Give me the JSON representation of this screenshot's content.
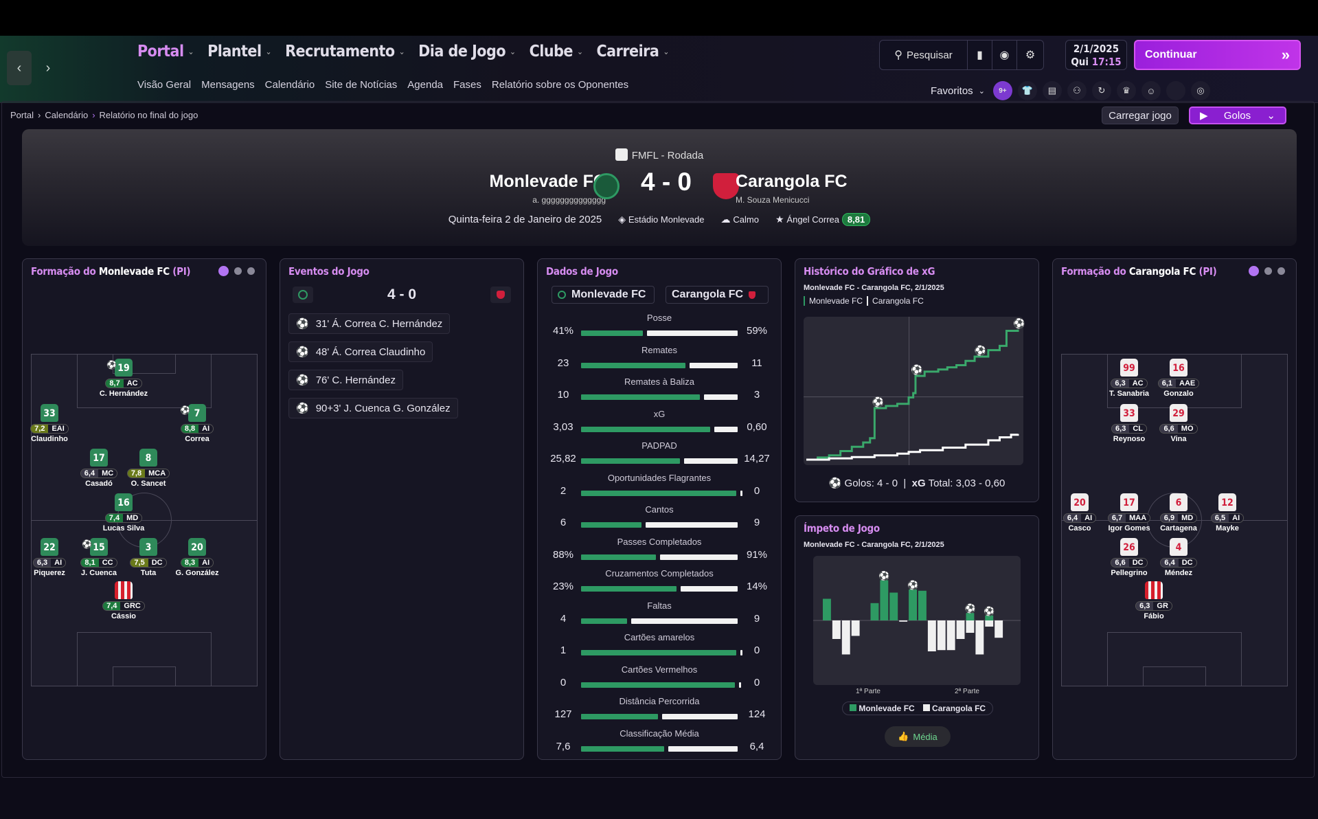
{
  "nav": {
    "main": [
      {
        "label": "Portal",
        "active": true
      },
      {
        "label": "Plantel"
      },
      {
        "label": "Recrutamento"
      },
      {
        "label": "Dia de Jogo"
      },
      {
        "label": "Clube"
      },
      {
        "label": "Carreira"
      }
    ],
    "sub": [
      "Visão Geral",
      "Mensagens",
      "Calendário",
      "Site de Notícias",
      "Agenda",
      "Fases",
      "Relatório sobre os Oponentes"
    ],
    "search": "Pesquisar",
    "date": "2/1/2025",
    "day": "Qui",
    "time": "17:15",
    "continue": "Continuar",
    "favorites": "Favoritos",
    "badge": "9+"
  },
  "breadcrumb": [
    "Portal",
    "Calendário",
    "Relatório no final do jogo"
  ],
  "actions": {
    "load": "Carregar jogo",
    "goals": "Golos"
  },
  "match": {
    "competition": "FMFL - Rodada",
    "home": "Monlevade FC",
    "away": "Carangola FC",
    "score": "4 - 0",
    "home_manager": "a. gggggggggggggg",
    "away_manager": "M. Souza Menicucci",
    "date": "Quinta-feira 2 de Janeiro de 2025",
    "stadium": "Estádio Monlevade",
    "weather": "Calmo",
    "motm": "Ángel Correa",
    "motm_rating": "8,81",
    "colors": {
      "home": "#2e9a63",
      "away": "#d11f3c",
      "accent": "#d68cf0"
    }
  },
  "home_form": {
    "title_pre": "Formação do ",
    "team": "Monlevade FC",
    "title_post": " (PI)",
    "players": [
      {
        "n": "19",
        "r": "8,7",
        "pos": "AC",
        "name": "C. Hernández",
        "t": "g",
        "c": "gg",
        "ball": true
      },
      {
        "n": "33",
        "r": "7,2",
        "pos": "EAI",
        "name": "Claudinho",
        "t": "g",
        "c": "yy"
      },
      {
        "n": "7",
        "r": "8,8",
        "pos": "AI",
        "name": "Correa",
        "t": "g",
        "c": "gg",
        "ball": true
      },
      {
        "n": "17",
        "r": "6,4",
        "pos": "MC",
        "name": "Casadó",
        "t": "g",
        "c": ""
      },
      {
        "n": "8",
        "r": "7,8",
        "pos": "MCA",
        "name": "O. Sancet",
        "t": "g",
        "c": "yy"
      },
      {
        "n": "16",
        "r": "7,4",
        "pos": "MD",
        "name": "Lucas Silva",
        "t": "g",
        "c": "gg"
      },
      {
        "n": "22",
        "r": "6,3",
        "pos": "AI",
        "name": "Piquerez",
        "t": "g",
        "c": ""
      },
      {
        "n": "15",
        "r": "8,1",
        "pos": "CC",
        "name": "J. Cuenca",
        "t": "g",
        "c": "gg",
        "ball": true
      },
      {
        "n": "3",
        "r": "7,5",
        "pos": "DC",
        "name": "Tuta",
        "t": "g",
        "c": "yy"
      },
      {
        "n": "20",
        "r": "8,3",
        "pos": "AI",
        "name": "G. González",
        "t": "g",
        "c": "gg"
      },
      {
        "n": "",
        "r": "7,4",
        "pos": "GRC",
        "name": "Cássio",
        "t": "gk",
        "c": "gg"
      }
    ]
  },
  "away_form": {
    "title_pre": "Formação do ",
    "team": "Carangola FC",
    "title_post": " (PI)",
    "players": [
      {
        "n": "99",
        "r": "6,3",
        "pos": "AC",
        "name": "T. Sanabria",
        "t": "r",
        "c": ""
      },
      {
        "n": "16",
        "r": "6,1",
        "pos": "AAE",
        "name": "Gonzalo",
        "t": "r",
        "c": ""
      },
      {
        "n": "33",
        "r": "6,3",
        "pos": "CL",
        "name": "Reynoso",
        "t": "r",
        "c": ""
      },
      {
        "n": "29",
        "r": "6,6",
        "pos": "MO",
        "name": "Vina",
        "t": "r",
        "c": ""
      },
      {
        "n": "20",
        "r": "6,4",
        "pos": "AI",
        "name": "Casco",
        "t": "r",
        "c": ""
      },
      {
        "n": "17",
        "r": "6,7",
        "pos": "MAA",
        "name": "Igor Gomes",
        "t": "r",
        "c": ""
      },
      {
        "n": "6",
        "r": "6,9",
        "pos": "MD",
        "name": "Cartagena",
        "t": "r",
        "c": ""
      },
      {
        "n": "12",
        "r": "6,5",
        "pos": "AI",
        "name": "Mayke",
        "t": "r",
        "c": ""
      },
      {
        "n": "26",
        "r": "6,6",
        "pos": "DC",
        "name": "Pellegrino",
        "t": "r",
        "c": ""
      },
      {
        "n": "4",
        "r": "6,4",
        "pos": "DC",
        "name": "Méndez",
        "t": "r",
        "c": ""
      },
      {
        "n": "",
        "r": "6,3",
        "pos": "GR",
        "name": "Fábio",
        "t": "gk",
        "c": ""
      }
    ]
  },
  "events": {
    "title": "Eventos do Jogo",
    "score": "4 - 0",
    "list": [
      "31' Á. Correa C. Hernández",
      "48' Á. Correa Claudinho",
      "76' C. Hernández",
      "90+3' J. Cuenca G. González"
    ]
  },
  "stats": {
    "title": "Dados de Jogo",
    "home": "Monlevade FC",
    "away": "Carangola FC",
    "rows": [
      {
        "l": "Posse",
        "h": "41%",
        "a": "59%",
        "hv": 41,
        "av": 59
      },
      {
        "l": "Remates",
        "h": "23",
        "a": "11",
        "hv": 23,
        "av": 11
      },
      {
        "l": "Remates à Baliza",
        "h": "10",
        "a": "3",
        "hv": 10,
        "av": 3
      },
      {
        "l": "xG",
        "h": "3,03",
        "a": "0,60",
        "hv": 3.03,
        "av": 0.6
      },
      {
        "l": "PADPAD",
        "h": "25,82",
        "a": "14,27",
        "hv": 25.82,
        "av": 14.27
      },
      {
        "l": "Oportunidades Flagrantes",
        "h": "2",
        "a": "0",
        "hv": 2,
        "av": 0
      },
      {
        "l": "Cantos",
        "h": "6",
        "a": "9",
        "hv": 6,
        "av": 9
      },
      {
        "l": "Passes Completados",
        "h": "88%",
        "a": "91%",
        "hv": 88,
        "av": 91
      },
      {
        "l": "Cruzamentos Completados",
        "h": "23%",
        "a": "14%",
        "hv": 23,
        "av": 14
      },
      {
        "l": "Faltas",
        "h": "4",
        "a": "9",
        "hv": 4,
        "av": 9
      },
      {
        "l": "Cartões amarelos",
        "h": "1",
        "a": "0",
        "hv": 1,
        "av": 0
      },
      {
        "l": "Cartões Vermelhos",
        "h": "0",
        "a": "0",
        "hv": 0,
        "av": 0
      },
      {
        "l": "Distância Percorrida",
        "h": "127",
        "a": "124",
        "hv": 127,
        "av": 124
      },
      {
        "l": "Classificação Média",
        "h": "7,6",
        "a": "6,4",
        "hv": 7.6,
        "av": 6.4
      }
    ]
  },
  "xg": {
    "title": "Histórico do Gráfico de xG",
    "subtitle": "Monlevade FC - Carangola FC, 2/1/2025",
    "legend_home": "Monlevade FC",
    "legend_away": "Carangola FC",
    "goals_label": "Golos: 4 - 0",
    "xg_label": "xG",
    "total_label": "Total: 3,03 - 0,60"
  },
  "momentum": {
    "title": "Ímpeto de Jogo",
    "subtitle": "Monlevade FC - Carangola FC, 2/1/2025",
    "first_half": "1ª Parte",
    "second_half": "2ª Parte",
    "legend_home": "Monlevade FC",
    "legend_away": "Carangola FC",
    "button": "Média"
  },
  "chart_data": [
    {
      "type": "line",
      "title": "Histórico do Gráfico de xG",
      "series": [
        {
          "name": "Monlevade FC",
          "x": [
            0,
            5,
            10,
            15,
            20,
            25,
            28,
            30,
            31,
            35,
            40,
            45,
            47,
            48,
            52,
            58,
            62,
            66,
            70,
            74,
            76,
            80,
            85,
            88,
            90,
            93
          ],
          "y": [
            0,
            0.05,
            0.1,
            0.2,
            0.3,
            0.4,
            0.5,
            1.2,
            1.2,
            1.25,
            1.3,
            1.45,
            1.55,
            1.95,
            2.05,
            2.1,
            2.15,
            2.2,
            2.3,
            2.4,
            2.4,
            2.55,
            2.65,
            3.0,
            3.0,
            3.03
          ]
        },
        {
          "name": "Carangola FC",
          "x": [
            0,
            10,
            20,
            30,
            40,
            45,
            50,
            60,
            70,
            80,
            85,
            90,
            93
          ],
          "y": [
            0,
            0.03,
            0.06,
            0.1,
            0.14,
            0.18,
            0.22,
            0.28,
            0.35,
            0.45,
            0.52,
            0.58,
            0.6
          ]
        }
      ]
    },
    {
      "type": "bar",
      "title": "Ímpeto de Jogo",
      "series": [
        {
          "name": "Monlevade FC",
          "values": [
            0.35,
            0,
            0,
            0,
            0,
            0.28,
            0.65,
            0.45,
            0,
            0.5,
            0.48,
            0,
            0,
            0,
            0,
            0.12,
            0,
            0.08,
            0,
            0
          ]
        },
        {
          "name": "Carangola FC",
          "values": [
            0,
            0.3,
            0.55,
            0.25,
            0,
            0,
            0,
            0,
            0.02,
            0,
            0,
            0.5,
            0.48,
            0.48,
            0.3,
            0.2,
            0.55,
            0.1,
            0.28,
            0
          ]
        }
      ]
    }
  ]
}
